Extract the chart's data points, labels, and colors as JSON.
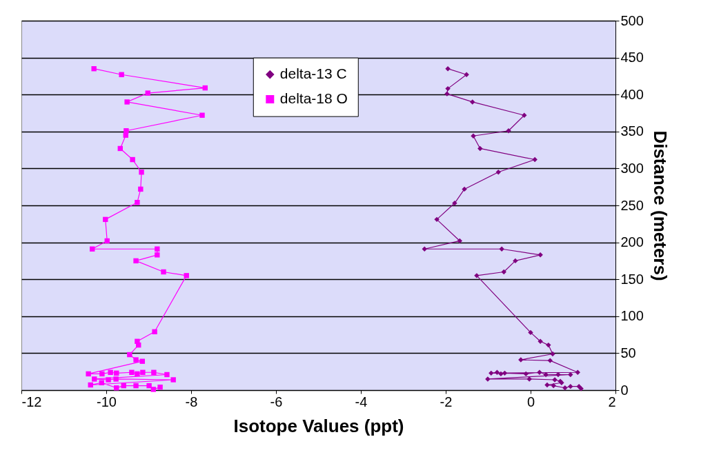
{
  "chart_data": {
    "type": "line",
    "xlabel": "Isotope Values (ppt)",
    "ylabel": "Distance (meters)",
    "xlim": [
      -12,
      2
    ],
    "xticks": [
      -12,
      -10,
      -8,
      -6,
      -4,
      -2,
      0,
      2
    ],
    "ylim": [
      0,
      500
    ],
    "yticks": [
      0,
      50,
      100,
      150,
      200,
      250,
      300,
      350,
      400,
      450,
      500
    ],
    "grid": "y",
    "legend": "top",
    "series": [
      {
        "name": "delta-13 C",
        "color": "#800080",
        "marker": "diamond",
        "x": [
          -1.95,
          -1.51,
          -1.95,
          -1.97,
          -1.37,
          -0.15,
          -0.52,
          -1.35,
          -1.19,
          0.1,
          -0.76,
          -1.56,
          -1.79,
          -2.21,
          -1.67,
          -2.5,
          -0.68,
          0.23,
          -0.36,
          -0.63,
          -1.27,
          0.0,
          0.23,
          0.42,
          0.52,
          -0.23,
          0.46,
          1.11,
          -0.93,
          -0.79,
          -0.7,
          -0.61,
          -0.11,
          0.21,
          0.36,
          0.65,
          0.94,
          -1.01,
          -0.03,
          0.57,
          0.7,
          0.73,
          0.39,
          0.54,
          0.81,
          0.94,
          1.14,
          1.19
        ],
        "values": [
          435,
          427,
          408,
          401,
          390,
          372,
          351,
          344,
          327,
          312,
          295,
          272,
          253,
          231,
          202,
          191,
          191,
          183,
          175,
          160,
          155,
          78,
          66,
          61,
          49,
          41,
          40,
          24,
          23,
          24,
          22,
          23,
          22,
          24,
          21,
          21,
          21,
          15,
          15,
          14,
          12,
          10,
          7,
          6,
          3,
          5,
          5,
          2
        ]
      },
      {
        "name": "delta-18 O",
        "color": "#ff00ff",
        "marker": "square",
        "x": [
          -10.29,
          -9.64,
          -7.67,
          -9.02,
          -9.51,
          -7.74,
          -9.53,
          -9.54,
          -9.67,
          -9.38,
          -9.17,
          -9.19,
          -9.27,
          -10.02,
          -9.98,
          -10.33,
          -8.8,
          -8.8,
          -9.3,
          -8.65,
          -8.11,
          -8.86,
          -9.27,
          -9.24,
          -9.45,
          -9.3,
          -9.15,
          -10.42,
          -10.1,
          -9.9,
          -9.76,
          -9.4,
          -9.27,
          -9.14,
          -8.88,
          -8.57,
          -10.28,
          -9.95,
          -9.77,
          -8.42,
          -10.37,
          -10.11,
          -9.76,
          -9.59,
          -9.3,
          -8.99,
          -8.89,
          -8.73
        ],
        "values": [
          435,
          427,
          409,
          402,
          390,
          372,
          351,
          345,
          327,
          312,
          295,
          272,
          254,
          231,
          202,
          191,
          191,
          183,
          175,
          160,
          155,
          79,
          66,
          61,
          48,
          41,
          39,
          22,
          22,
          24,
          23,
          24,
          22,
          24,
          24,
          21,
          15,
          14,
          15,
          14,
          7,
          10,
          3,
          6,
          6,
          6,
          1,
          4
        ]
      }
    ]
  }
}
